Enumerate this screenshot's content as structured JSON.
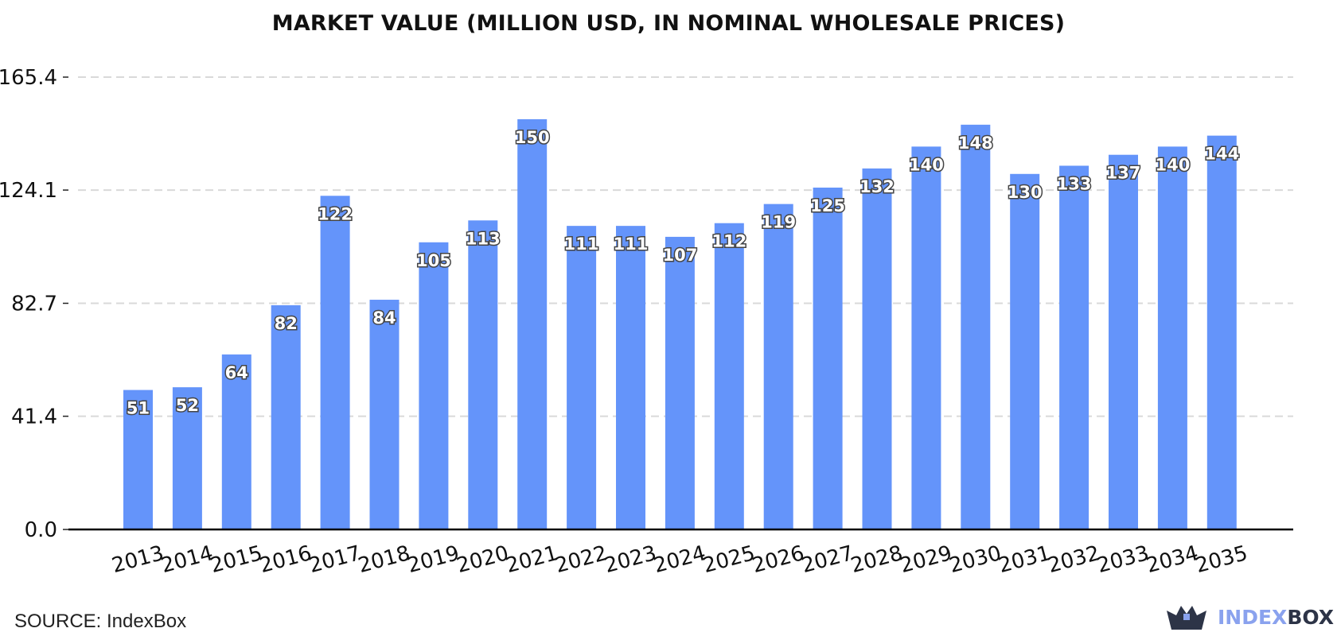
{
  "header": {
    "title": "MARKET VALUE (MILLION USD, IN NOMINAL WHOLESALE PRICES)"
  },
  "footer": {
    "source": "SOURCE: IndexBox",
    "brand_part1": "INDEX",
    "brand_part2": "BOX"
  },
  "icons": {
    "brand": "indexbox-crown-icon"
  },
  "colors": {
    "bar": "#6494fa",
    "grid": "#d9d9d9",
    "axis": "#000000",
    "brand_light": "#8aa2ee",
    "brand_dark": "#2d3447"
  },
  "chart_data": {
    "type": "bar",
    "title": "MARKET VALUE (MILLION USD, IN NOMINAL WHOLESALE PRICES)",
    "xlabel": "",
    "ylabel": "",
    "categories": [
      "2013",
      "2014",
      "2015",
      "2016",
      "2017",
      "2018",
      "2019",
      "2020",
      "2021",
      "2022",
      "2023",
      "2024",
      "2025",
      "2026",
      "2027",
      "2028",
      "2029",
      "2030",
      "2031",
      "2032",
      "2033",
      "2034",
      "2035"
    ],
    "values": [
      51,
      52,
      64,
      82,
      122,
      84,
      105,
      113,
      150,
      111,
      111,
      107,
      112,
      119,
      125,
      132,
      140,
      148,
      130,
      133,
      137,
      140,
      144
    ],
    "data_labels": [
      "51",
      "52",
      "64",
      "82",
      "122",
      "84",
      "105",
      "113",
      "150",
      "111",
      "111",
      "107",
      "112",
      "119",
      "125",
      "132",
      "140",
      "148",
      "130",
      "133",
      "137",
      "140",
      "144"
    ],
    "yticks": [
      0.0,
      41.4,
      82.7,
      124.1,
      165.4
    ],
    "ytick_labels": [
      "0.0",
      "41.4",
      "82.7",
      "124.1",
      "165.4"
    ],
    "ylim": [
      0,
      165.4
    ],
    "grid": true,
    "legend": "none"
  }
}
